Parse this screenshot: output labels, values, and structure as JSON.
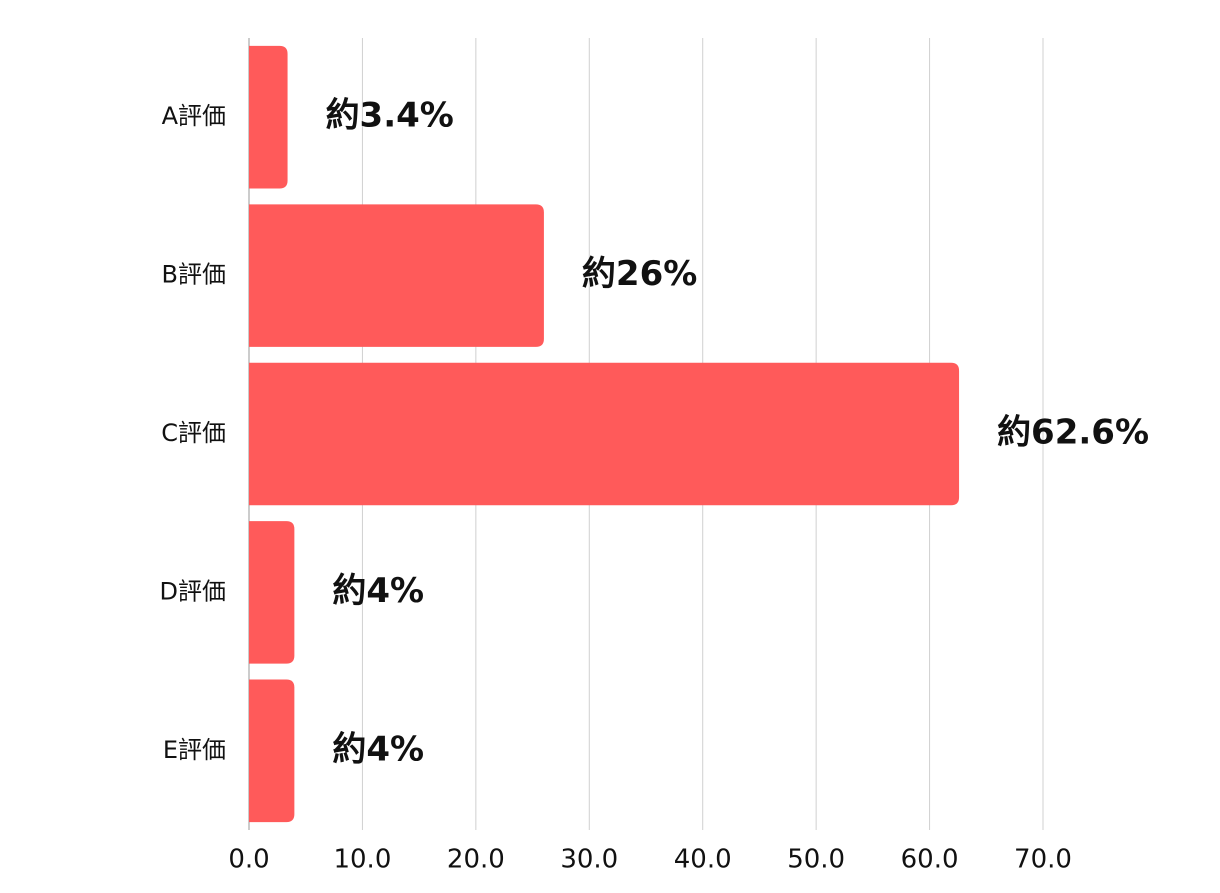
{
  "chart_data": {
    "type": "barh",
    "categories": [
      "A評価",
      "B評価",
      "C評価",
      "D評価",
      "E評価"
    ],
    "values": [
      3.4,
      26,
      62.6,
      4,
      4
    ],
    "value_labels": [
      "約3.4%",
      "約26%",
      "約62.6%",
      "約4%",
      "約4%"
    ],
    "color": "#ff5a5a",
    "xlim": [
      0,
      70
    ],
    "xticks": [
      {
        "value": 0,
        "label": "0.0"
      },
      {
        "value": 10,
        "label": "10.0"
      },
      {
        "value": 20,
        "label": "20.0"
      },
      {
        "value": 30,
        "label": "30.0"
      },
      {
        "value": 40,
        "label": "40.0"
      },
      {
        "value": 50,
        "label": "50.0"
      },
      {
        "value": 60,
        "label": "60.0"
      },
      {
        "value": 70,
        "label": "70.0"
      }
    ],
    "grid": true
  }
}
